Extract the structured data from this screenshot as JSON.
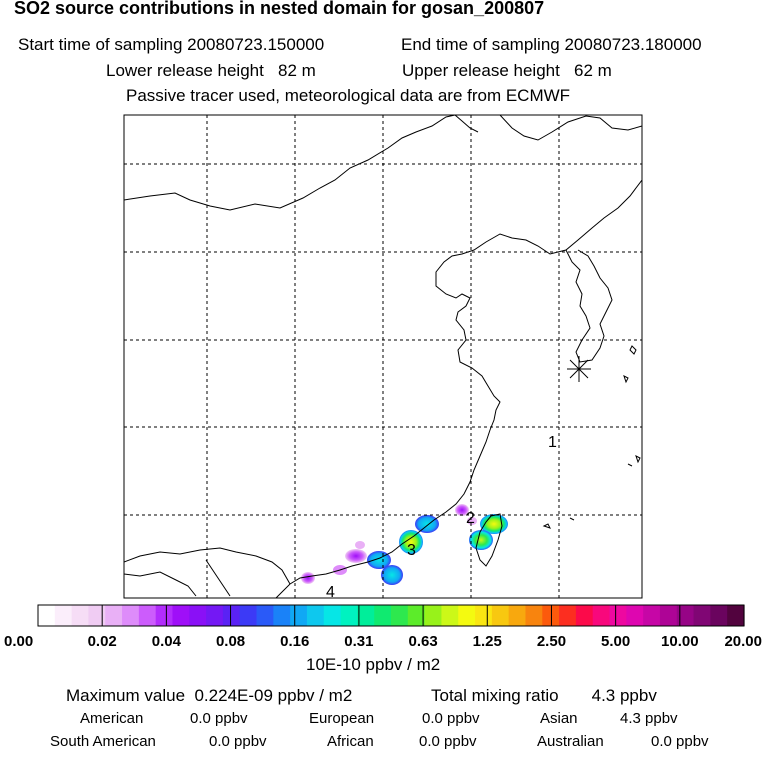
{
  "header": {
    "title": "SO2 source contributions in nested domain for gosan_200807",
    "start_time": "Start time of sampling 20080723.150000",
    "end_time": "End time of sampling 20080723.180000",
    "lower_release": "Lower release height   82 m",
    "upper_release": "Upper release height   62 m",
    "note": "Passive tracer used, meteorological data are from ECMWF"
  },
  "map": {
    "station_marker": "station-star",
    "labels": [
      "1",
      "2",
      "3",
      "4"
    ]
  },
  "colorbar": {
    "tick_labels": [
      "0.00",
      "0.02",
      "0.04",
      "0.08",
      "0.16",
      "0.31",
      "0.63",
      "1.25",
      "2.50",
      "5.00",
      "10.00",
      "20.00"
    ],
    "colors": [
      "#ffffff",
      "#fbeefb",
      "#f6ddf6",
      "#f0ccf3",
      "#e9b0f6",
      "#de8cfa",
      "#cc5cfc",
      "#b22cfc",
      "#9f0ff8",
      "#8a10f6",
      "#7418f4",
      "#5a22f4",
      "#3c3af6",
      "#2a5af8",
      "#1a82f8",
      "#10a8f4",
      "#0ec8ee",
      "#06e6e6",
      "#00f2c0",
      "#00ee9a",
      "#10ea70",
      "#2ee84e",
      "#5cec2a",
      "#98f21a",
      "#ccf818",
      "#f4fa10",
      "#fae612",
      "#f8c810",
      "#f8a80e",
      "#f8840e",
      "#fc5a0c",
      "#fc2e20",
      "#fc0a4a",
      "#f8087c",
      "#ee08a0",
      "#de06b0",
      "#c606a6",
      "#ae0496",
      "#960486",
      "#800674",
      "#6a045e",
      "#52033e"
    ],
    "unit": "10E-10 ppbv / m2"
  },
  "summary": {
    "maximum": "Maximum value  0.224E-09 ppbv / m2",
    "total": "Total mixing ratio       4.3 ppbv",
    "american_label": "American",
    "american_value": "0.0 ppbv",
    "european_label": "European",
    "european_value": "0.0 ppbv",
    "asian_label": "Asian",
    "asian_value": "4.3 ppbv",
    "south_american_label": "South American",
    "south_american_value": "0.0 ppbv",
    "african_label": "African",
    "african_value": "0.0 ppbv",
    "australian_label": "Australian",
    "australian_value": "0.0 ppbv"
  }
}
